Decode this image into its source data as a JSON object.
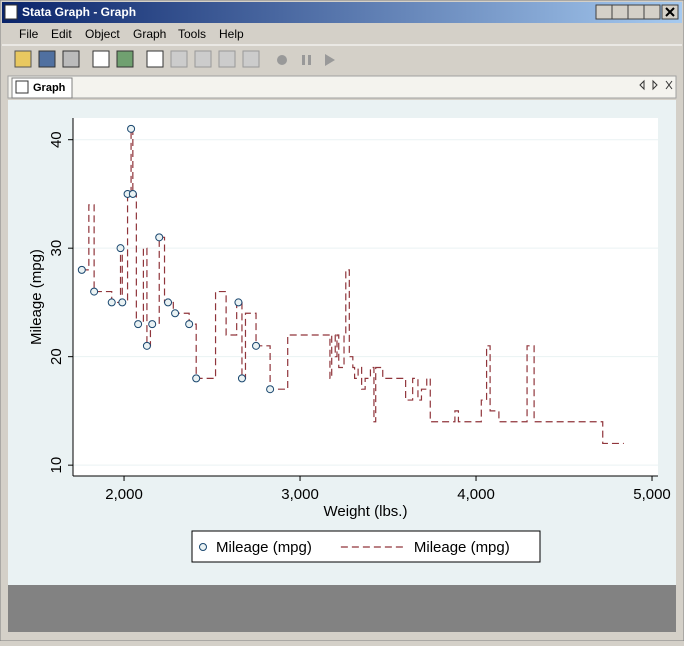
{
  "window": {
    "title": "Stata Graph - Graph",
    "menu": [
      "File",
      "Edit",
      "Object",
      "Graph",
      "Tools",
      "Help"
    ],
    "tab": "Graph"
  },
  "chart_data": {
    "type": "scatter",
    "x_label": "Weight (lbs.)",
    "y_label": "Mileage (mpg)",
    "xlim": [
      1710,
      5034
    ],
    "ylim": [
      9,
      42
    ],
    "xticks": [
      {
        "value": 2000,
        "label": "2,000"
      },
      {
        "value": 3000,
        "label": "3,000"
      },
      {
        "value": 4000,
        "label": "4,000"
      },
      {
        "value": 5000,
        "label": "5,000"
      }
    ],
    "yticks": [
      10,
      20,
      30,
      40
    ],
    "grid": true,
    "series": [
      {
        "name": "Mileage (mpg)",
        "type": "scatter",
        "color": "#1a476f",
        "x": [
          1760,
          1830,
          1930,
          1980,
          1990,
          2020,
          2040,
          2050,
          2080,
          2130,
          2160,
          2200,
          2250,
          2290,
          2370,
          2410,
          2650,
          2670,
          2750,
          2830
        ],
        "values": [
          28,
          26,
          25,
          30,
          25,
          35,
          41,
          35,
          23,
          21,
          23,
          31,
          25,
          24,
          23,
          18,
          25,
          18,
          21,
          17
        ]
      },
      {
        "name": "Mileage (mpg)",
        "type": "stairstep",
        "color": "#90353b",
        "dash": true,
        "x": [
          1760,
          1800,
          1830,
          1930,
          1980,
          1990,
          2020,
          2040,
          2050,
          2070,
          2110,
          2130,
          2150,
          2200,
          2230,
          2280,
          2370,
          2410,
          2520,
          2580,
          2640,
          2670,
          2690,
          2750,
          2830,
          2930,
          3170,
          3180,
          3200,
          3210,
          3220,
          3250,
          3260,
          3280,
          3300,
          3310,
          3330,
          3350,
          3370,
          3400,
          3420,
          3430,
          3470,
          3600,
          3640,
          3670,
          3690,
          3720,
          3740,
          3880,
          3900,
          4030,
          4060,
          4080,
          4130,
          4290,
          4330,
          4720,
          4840
        ],
        "values": [
          28,
          34,
          26,
          25,
          30,
          25,
          35,
          41,
          35,
          23,
          30,
          21,
          23,
          31,
          25,
          24,
          23,
          18,
          26,
          22,
          25,
          18,
          24,
          21,
          17,
          22,
          18,
          22,
          20,
          22,
          19,
          22,
          28,
          20,
          19,
          18,
          19,
          17,
          18,
          19,
          14,
          19,
          18,
          16,
          18,
          16,
          17,
          18,
          14,
          15,
          14,
          16,
          21,
          15,
          14,
          21,
          14,
          12,
          12
        ]
      }
    ]
  }
}
